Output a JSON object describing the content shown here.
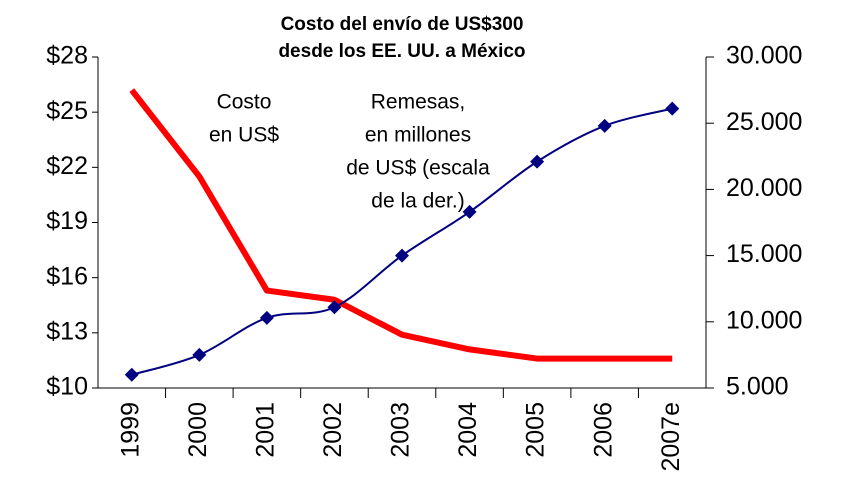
{
  "chart_data": {
    "type": "line",
    "title": [
      "Costo del envío de US$300",
      "desde los EE. UU. a México"
    ],
    "categories": [
      "1999",
      "2000",
      "2001",
      "2002",
      "2003",
      "2004",
      "2005",
      "2006",
      "2007e"
    ],
    "series": [
      {
        "name": "Costo en US$",
        "color": "#ff0000",
        "axis": "y",
        "values": [
          26.2,
          21.5,
          15.3,
          14.8,
          12.9,
          12.1,
          11.6,
          11.6,
          11.6
        ]
      },
      {
        "name": "Remesas, en millones de US$ (escala de la der.)",
        "color": "#000080",
        "axis": "y2",
        "values": [
          6000,
          7500,
          10300,
          11100,
          15000,
          18300,
          22100,
          24800,
          26100
        ]
      }
    ],
    "annotations": [
      [
        "Costo",
        "en US$"
      ],
      [
        "Remesas,",
        "en millones",
        "de US$ (escala",
        "de la der.)"
      ]
    ],
    "ylim": [
      10,
      28
    ],
    "yticks": [
      {
        "value": 10,
        "label": "$10"
      },
      {
        "value": 13,
        "label": "$13"
      },
      {
        "value": 16,
        "label": "$16"
      },
      {
        "value": 19,
        "label": "$19"
      },
      {
        "value": 22,
        "label": "$22"
      },
      {
        "value": 25,
        "label": "$25"
      },
      {
        "value": 28,
        "label": "$28"
      }
    ],
    "y2lim": [
      5000,
      30000
    ],
    "y2ticks": [
      {
        "value": 5000,
        "label": "5.000"
      },
      {
        "value": 10000,
        "label": "10.000"
      },
      {
        "value": 15000,
        "label": "15.000"
      },
      {
        "value": 20000,
        "label": "20.000"
      },
      {
        "value": 25000,
        "label": "25.000"
      },
      {
        "value": 30000,
        "label": "30.000"
      }
    ]
  }
}
